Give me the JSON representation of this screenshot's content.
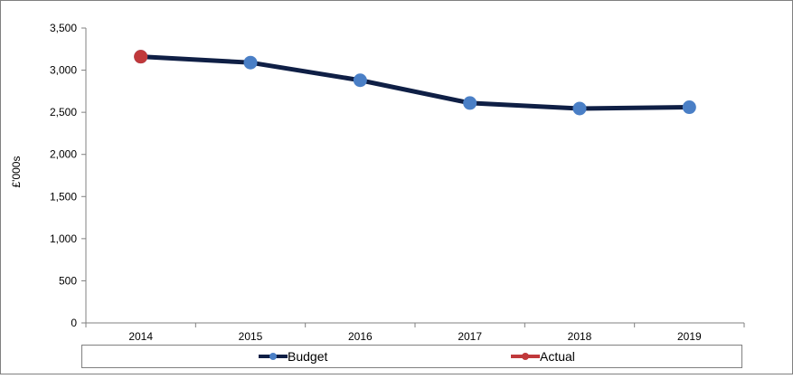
{
  "chart_data": {
    "type": "line",
    "title": "",
    "xlabel": "",
    "ylabel": "£'000s",
    "categories": [
      "2014",
      "2015",
      "2016",
      "2017",
      "2018",
      "2019"
    ],
    "ylim": [
      0,
      3500
    ],
    "yticks": [
      0,
      500,
      1000,
      1500,
      2000,
      2500,
      3000,
      3500
    ],
    "ytick_labels": [
      "0",
      "500",
      "1,000",
      "1,500",
      "2,000",
      "2,500",
      "3,000",
      "3,500"
    ],
    "grid": false,
    "legend_position": "bottom",
    "series": [
      {
        "name": "Budget",
        "values": [
          3160,
          3090,
          2880,
          2610,
          2545,
          2560
        ]
      },
      {
        "name": "Actual",
        "values": [
          3160,
          null,
          null,
          null,
          null,
          null
        ]
      }
    ],
    "colors": {
      "line": "#0f1f45",
      "budget_marker": "#4a7fc6",
      "actual_marker": "#c0393b",
      "axis": "#808080",
      "frame": "#808080"
    }
  }
}
